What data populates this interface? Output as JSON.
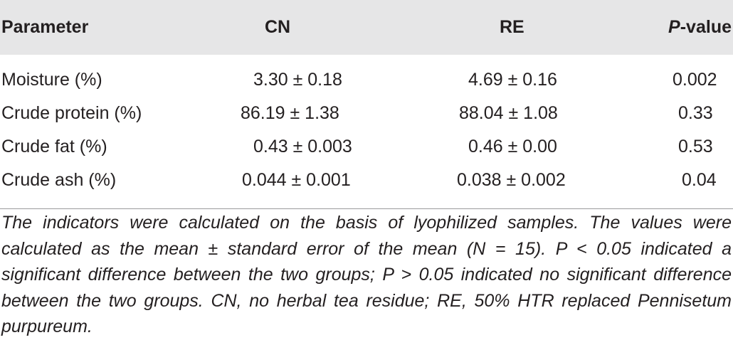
{
  "table": {
    "headers": {
      "parameter": "Parameter",
      "cn": "CN",
      "re": "RE",
      "p_letter": "P",
      "p_suffix": "-value"
    },
    "rows": [
      {
        "parameter": "Moisture (%)",
        "cn": "3.30 ± 0.18",
        "re": "4.69 ± 0.16",
        "p": "0.002"
      },
      {
        "parameter": "Crude protein (%)",
        "cn": "86.19 ± 1.38",
        "re": "88.04 ± 1.08",
        "p": "0.33"
      },
      {
        "parameter": "Crude fat (%)",
        "cn": "0.43 ± 0.003",
        "re": "0.46 ± 0.00",
        "p": "0.53"
      },
      {
        "parameter": "Crude ash (%)",
        "cn": "0.044 ± 0.001",
        "re": "0.038 ± 0.002",
        "p": "0.04"
      }
    ]
  },
  "footnote": "The indicators were calculated on the basis of lyophilized samples. The values were calculated as the mean ± standard error of the mean (N = 15). P < 0.05 indicated a significant difference between the two groups; P > 0.05 indicated no significant difference between the two groups. CN, no herbal tea residue; RE, 50% HTR replaced Pennisetum purpureum.",
  "colors": {
    "header_background": "#e6e6e7",
    "text": "#231f20",
    "rule": "#9a9a9c"
  }
}
